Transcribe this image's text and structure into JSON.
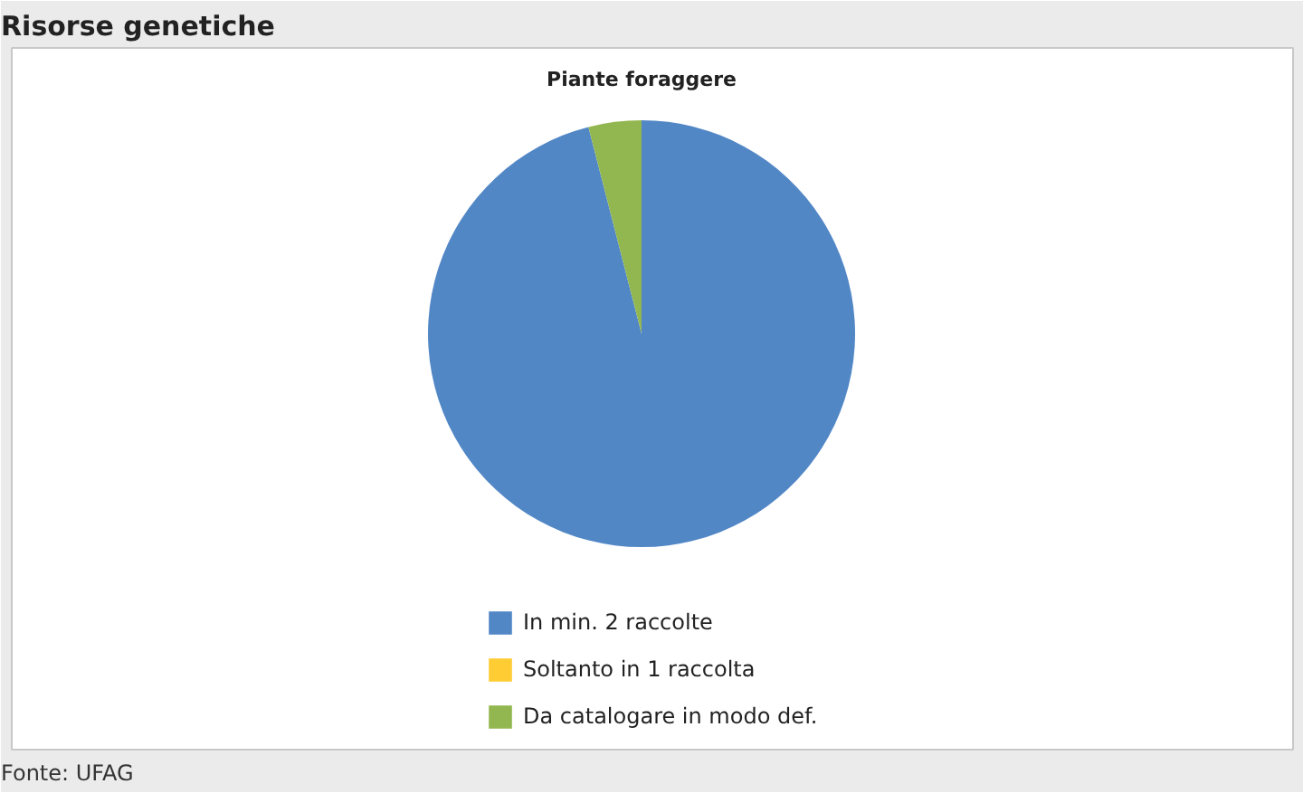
{
  "chart_data": {
    "type": "pie",
    "title": "Risorse genetiche",
    "subtitle": "Piante foraggere",
    "categories": [
      "In min. 2 raccolte",
      "Soltanto in 1 raccolta",
      "Da catalogare in modo def."
    ],
    "values": [
      96,
      0,
      4
    ],
    "colors": [
      "#5287c6",
      "#ffcc33",
      "#93b750"
    ],
    "legend": "bottom",
    "annotations": [
      "Fonte: UFAG"
    ]
  }
}
